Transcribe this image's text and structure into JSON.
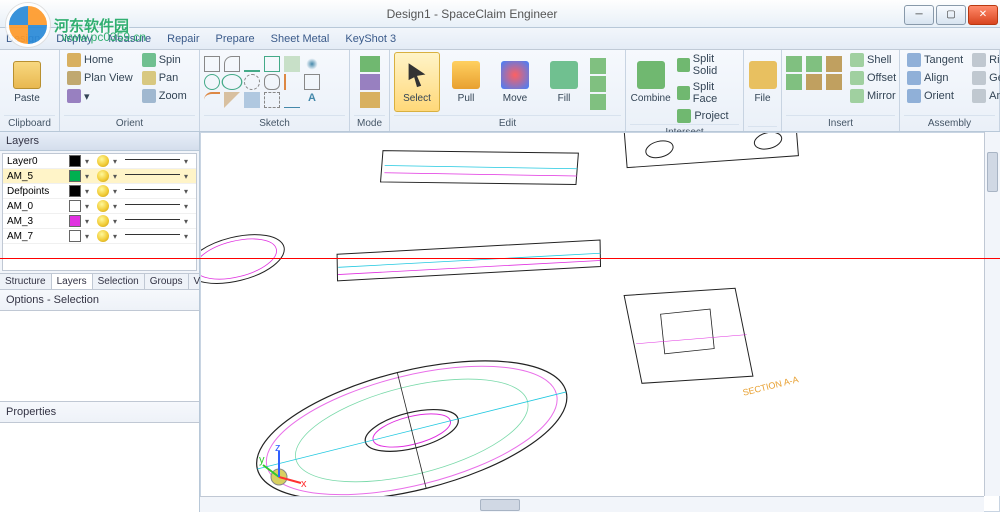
{
  "title": "Design1 - SpaceClaim Engineer",
  "watermark": {
    "text": "河东软件园",
    "url": "www.pc0359.cn"
  },
  "menu": {
    "items": [
      "Design",
      "Display",
      "Measure",
      "Repair",
      "Prepare",
      "Sheet Metal",
      "KeyShot 3"
    ]
  },
  "ribbon": {
    "clipboard": {
      "label": "Clipboard",
      "paste": "Paste"
    },
    "orient": {
      "label": "Orient",
      "home": "Home",
      "plan": "Plan View",
      "pan": "Pan",
      "spin": "Spin",
      "zoom": "Zoom"
    },
    "sketch": {
      "label": "Sketch"
    },
    "mode": {
      "label": "Mode"
    },
    "edit": {
      "label": "Edit",
      "select": "Select",
      "pull": "Pull",
      "move": "Move",
      "fill": "Fill",
      "combine": "Combine"
    },
    "intersect": {
      "label": "Intersect",
      "split_solid": "Split Solid",
      "split_face": "Split Face",
      "project": "Project"
    },
    "file": {
      "label": "File"
    },
    "insert": {
      "label": "Insert",
      "shell": "Shell",
      "offset": "Offset",
      "mirror": "Mirror"
    },
    "assembly": {
      "label": "Assembly",
      "tangent": "Tangent",
      "align": "Align",
      "orient": "Orient",
      "rigid": "Rigid",
      "gear": "Gear",
      "anchor": "Anchor"
    }
  },
  "layers_panel": {
    "title": "Layers",
    "layers": [
      {
        "name": "Layer0",
        "color": "#000000"
      },
      {
        "name": "AM_5",
        "color": "#00b050"
      },
      {
        "name": "Defpoints",
        "color": "#000000"
      },
      {
        "name": "AM_0",
        "color": "#ffffff"
      },
      {
        "name": "AM_3",
        "color": "#e030e0"
      },
      {
        "name": "AM_7",
        "color": "#ffffff"
      }
    ],
    "selected_index": 1,
    "tabs": [
      "Structure",
      "Layers",
      "Selection",
      "Groups",
      "Views"
    ],
    "active_tab": 1,
    "options": "Options - Selection",
    "properties": "Properties"
  },
  "canvas": {
    "background": "#ffffff",
    "section_label": "SECTION A-A",
    "section_color": "#e8a030",
    "colors": {
      "outline": "#222222",
      "magenta": "#e030e0",
      "cyan": "#20c8e0",
      "green": "#20c070"
    },
    "triad": {
      "x_color": "#ff3030",
      "y_color": "#30c830",
      "z_color": "#3060ff"
    }
  }
}
